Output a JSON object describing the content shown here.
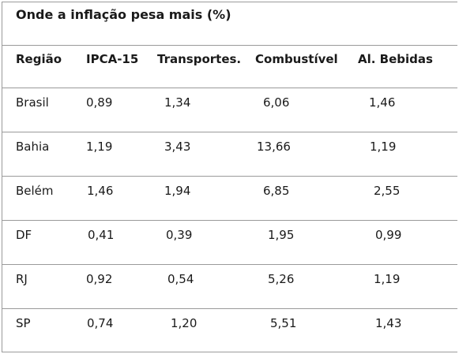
{
  "chart_data": {
    "type": "table",
    "title": "Onde a inflação pesa mais (%)",
    "columns": [
      "Região",
      "IPCA-15",
      "Transportes.",
      "Combustível",
      "Al. Bebidas"
    ],
    "rows": [
      [
        "Brasil",
        "0,89",
        "1,34",
        "6,06",
        "1,46"
      ],
      [
        "Bahia",
        "1,19",
        "3,43",
        "13,66",
        "1,19"
      ],
      [
        "Belém",
        "1,46",
        "1,94",
        "6,85",
        "2,55"
      ],
      [
        "DF",
        "0,41",
        "0,39",
        "1,95",
        "0,99"
      ],
      [
        "RJ",
        "0,92",
        "0,54",
        "5,26",
        "1,19"
      ],
      [
        "SP",
        "0,74",
        "1,20",
        "5,51",
        "1,43"
      ]
    ]
  }
}
